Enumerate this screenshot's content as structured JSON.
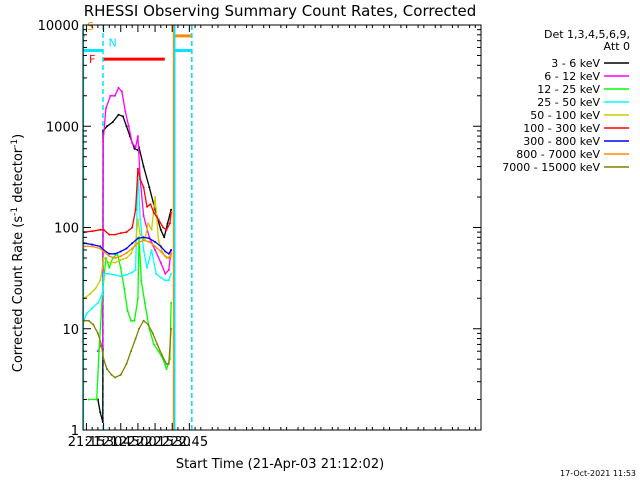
{
  "chart_data": {
    "type": "line",
    "title": "RHESSI Observing Summary Count Rates, Corrected",
    "xlabel": "Start Time (21-Apr-03 21:12:02)",
    "ylabel_main": "Corrected Count Rate (s",
    "ylabel_sup1": "-1",
    "ylabel_mid": " detector",
    "ylabel_sup2": "-1",
    "ylabel_end": ")",
    "footer": "17-Oct-2021 11:53",
    "yscale": "log",
    "ylim": [
      1,
      10000
    ],
    "xlim_min": [
      1272,
      1620
    ],
    "x_ticks": [
      {
        "t": 1275,
        "label": "21:15"
      },
      {
        "t": 1290,
        "label": "21:30"
      },
      {
        "t": 1305,
        "label": "21:45"
      },
      {
        "t": 1320,
        "label": "22:00"
      },
      {
        "t": 1335,
        "label": "22:15"
      },
      {
        "t": 1350,
        "label": "22:30"
      },
      {
        "t": 1365,
        "label": "22:45"
      }
    ],
    "y_ticks": [
      {
        "v": 1,
        "label": "1"
      },
      {
        "v": 10,
        "label": "10"
      },
      {
        "v": 100,
        "label": "100"
      },
      {
        "v": 1000,
        "label": "1000"
      },
      {
        "v": 10000,
        "label": "10000"
      }
    ],
    "legend_header": [
      "Det 1,3,4,5,6,9,",
      "Att 0"
    ],
    "legend_position": "right",
    "flags": [
      {
        "label": "S",
        "color": "#ff8c00",
        "segments": [
          [
            1272,
            1273.5
          ],
          [
            1351,
            1367
          ]
        ],
        "y": 7800
      },
      {
        "label": "N",
        "color": "#00e5ff",
        "segments": [
          [
            1272,
            1289
          ],
          [
            1352,
            1367
          ]
        ],
        "y": 5600
      },
      {
        "label": "F",
        "color": "#ff0000",
        "segments": [
          [
            1289.5,
            1343.5
          ]
        ],
        "y": 4600
      }
    ],
    "vlines": [
      {
        "t": 1272.3,
        "color": "#00e5ff",
        "dash": false
      },
      {
        "t": 1289.5,
        "color": "#00e5ff",
        "dash": true
      },
      {
        "t": 1351.2,
        "color": "#ff8c00",
        "dash": false
      },
      {
        "t": 1352.2,
        "color": "#00e5ff",
        "dash": false
      },
      {
        "t": 1367,
        "color": "#ff8c00",
        "dash": true
      },
      {
        "t": 1367.2,
        "color": "#00e5ff",
        "dash": true
      }
    ],
    "series": [
      {
        "name": "3 - 6 keV",
        "color": "#000000",
        "points": [
          [
            1285,
            2
          ],
          [
            1287,
            1.5
          ],
          [
            1289.3,
            1.2
          ],
          [
            1289.6,
            900
          ],
          [
            1293,
            1000
          ],
          [
            1298,
            1100
          ],
          [
            1303,
            1300
          ],
          [
            1307,
            1250
          ],
          [
            1310,
            1000
          ],
          [
            1313,
            800
          ],
          [
            1317,
            600
          ],
          [
            1320,
            580
          ],
          [
            1321,
            620
          ],
          [
            1325,
            400
          ],
          [
            1330,
            250
          ],
          [
            1335,
            150
          ],
          [
            1340,
            95
          ],
          [
            1343,
            80
          ],
          [
            1346,
            110
          ],
          [
            1349,
            150
          ]
        ]
      },
      {
        "name": "6 - 12 keV",
        "color": "#ff00ff",
        "points": [
          [
            1285,
            6
          ],
          [
            1288,
            7
          ],
          [
            1289.3,
            6.5
          ],
          [
            1289.6,
            700
          ],
          [
            1292,
            1500
          ],
          [
            1296,
            2000
          ],
          [
            1300,
            2000
          ],
          [
            1303,
            2400
          ],
          [
            1306,
            2200
          ],
          [
            1309,
            1400
          ],
          [
            1312,
            1000
          ],
          [
            1315,
            680
          ],
          [
            1318,
            620
          ],
          [
            1320,
            800
          ],
          [
            1322,
            300
          ],
          [
            1325,
            130
          ],
          [
            1330,
            80
          ],
          [
            1335,
            60
          ],
          [
            1340,
            45
          ],
          [
            1344,
            35
          ],
          [
            1347,
            38
          ],
          [
            1349,
            60
          ]
        ]
      },
      {
        "name": "12 - 25 keV",
        "color": "#00ff00",
        "points": [
          [
            1277,
            2
          ],
          [
            1284,
            2
          ],
          [
            1286,
            6
          ],
          [
            1289,
            22
          ],
          [
            1292,
            50
          ],
          [
            1295,
            40
          ],
          [
            1298,
            50
          ],
          [
            1302,
            55
          ],
          [
            1305,
            40
          ],
          [
            1308,
            25
          ],
          [
            1311,
            15
          ],
          [
            1314,
            12
          ],
          [
            1317,
            12
          ],
          [
            1320,
            20
          ],
          [
            1321,
            80
          ],
          [
            1323,
            30
          ],
          [
            1326,
            18
          ],
          [
            1330,
            10
          ],
          [
            1334,
            7
          ],
          [
            1338,
            6
          ],
          [
            1342,
            5
          ],
          [
            1345,
            4
          ],
          [
            1348,
            5
          ],
          [
            1349,
            18
          ]
        ]
      },
      {
        "name": "25 - 50 keV",
        "color": "#00ffff",
        "points": [
          [
            1273,
            12
          ],
          [
            1275,
            14
          ],
          [
            1280,
            16
          ],
          [
            1285,
            18
          ],
          [
            1289,
            22
          ],
          [
            1290,
            35
          ],
          [
            1294,
            35
          ],
          [
            1300,
            34
          ],
          [
            1305,
            33
          ],
          [
            1310,
            34
          ],
          [
            1315,
            36
          ],
          [
            1318,
            38
          ],
          [
            1320,
            350
          ],
          [
            1322,
            120
          ],
          [
            1325,
            60
          ],
          [
            1328,
            40
          ],
          [
            1332,
            60
          ],
          [
            1336,
            35
          ],
          [
            1340,
            32
          ],
          [
            1344,
            30
          ],
          [
            1347,
            30
          ],
          [
            1349,
            35
          ]
        ]
      },
      {
        "name": "50 - 100 keV",
        "color": "#cccc00",
        "points": [
          [
            1273,
            20
          ],
          [
            1278,
            22
          ],
          [
            1283,
            25
          ],
          [
            1287,
            30
          ],
          [
            1289,
            40
          ],
          [
            1290,
            50
          ],
          [
            1295,
            45
          ],
          [
            1300,
            45
          ],
          [
            1305,
            48
          ],
          [
            1310,
            50
          ],
          [
            1314,
            55
          ],
          [
            1318,
            70
          ],
          [
            1320,
            120
          ],
          [
            1322,
            85
          ],
          [
            1326,
            75
          ],
          [
            1329,
            110
          ],
          [
            1332,
            95
          ],
          [
            1335,
            200
          ],
          [
            1338,
            75
          ],
          [
            1342,
            55
          ],
          [
            1345,
            50
          ],
          [
            1349,
            52
          ]
        ]
      },
      {
        "name": "100 - 300 keV",
        "color": "#ff0000",
        "points": [
          [
            1273,
            90
          ],
          [
            1280,
            92
          ],
          [
            1287,
            95
          ],
          [
            1290,
            95
          ],
          [
            1295,
            85
          ],
          [
            1300,
            85
          ],
          [
            1305,
            88
          ],
          [
            1310,
            90
          ],
          [
            1315,
            100
          ],
          [
            1318,
            150
          ],
          [
            1320,
            380
          ],
          [
            1322,
            300
          ],
          [
            1325,
            250
          ],
          [
            1328,
            160
          ],
          [
            1331,
            170
          ],
          [
            1334,
            140
          ],
          [
            1338,
            120
          ],
          [
            1342,
            100
          ],
          [
            1345,
            95
          ],
          [
            1348,
            110
          ],
          [
            1349,
            140
          ]
        ]
      },
      {
        "name": "300 - 800 keV",
        "color": "#0000ff",
        "points": [
          [
            1273,
            70
          ],
          [
            1280,
            68
          ],
          [
            1287,
            65
          ],
          [
            1290,
            60
          ],
          [
            1295,
            55
          ],
          [
            1300,
            55
          ],
          [
            1305,
            58
          ],
          [
            1310,
            62
          ],
          [
            1315,
            70
          ],
          [
            1320,
            78
          ],
          [
            1325,
            80
          ],
          [
            1330,
            78
          ],
          [
            1335,
            72
          ],
          [
            1340,
            65
          ],
          [
            1344,
            58
          ],
          [
            1347,
            55
          ],
          [
            1349,
            60
          ]
        ]
      },
      {
        "name": "800 - 7000 keV",
        "color": "#ff8c00",
        "points": [
          [
            1273,
            65
          ],
          [
            1280,
            65
          ],
          [
            1287,
            62
          ],
          [
            1290,
            58
          ],
          [
            1295,
            52
          ],
          [
            1300,
            50
          ],
          [
            1305,
            52
          ],
          [
            1310,
            56
          ],
          [
            1315,
            62
          ],
          [
            1320,
            70
          ],
          [
            1325,
            75
          ],
          [
            1330,
            72
          ],
          [
            1335,
            65
          ],
          [
            1340,
            58
          ],
          [
            1344,
            52
          ],
          [
            1347,
            50
          ],
          [
            1349,
            55
          ]
        ]
      },
      {
        "name": "7000 - 15000 keV",
        "color": "#808000",
        "points": [
          [
            1273,
            12
          ],
          [
            1277,
            12
          ],
          [
            1281,
            11
          ],
          [
            1285,
            9
          ],
          [
            1288,
            7
          ],
          [
            1290,
            5
          ],
          [
            1293,
            4
          ],
          [
            1297,
            3.5
          ],
          [
            1300,
            3.3
          ],
          [
            1305,
            3.5
          ],
          [
            1310,
            4.5
          ],
          [
            1314,
            6
          ],
          [
            1318,
            8
          ],
          [
            1321,
            10
          ],
          [
            1325,
            12
          ],
          [
            1329,
            11
          ],
          [
            1333,
            9
          ],
          [
            1337,
            7
          ],
          [
            1341,
            5.5
          ],
          [
            1345,
            4.5
          ],
          [
            1347,
            4.5
          ],
          [
            1349,
            10
          ]
        ]
      }
    ]
  }
}
